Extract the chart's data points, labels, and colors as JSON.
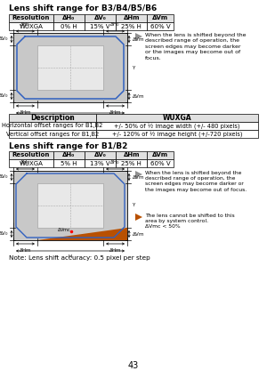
{
  "page_num": "43",
  "title1": "Lens shift range for B3/B4/B5/B6",
  "title2": "Lens shift range for B1/B2",
  "table1_headers": [
    "Resolution",
    "ΔH₀",
    "ΔV₀",
    "ΔHm",
    "ΔVm"
  ],
  "table1_row": [
    "WUXGA",
    "0% H",
    "15% V",
    "25% H",
    "60% V"
  ],
  "table2_headers": [
    "Resolution",
    "ΔH₀",
    "ΔV₀",
    "ΔHm",
    "ΔVm"
  ],
  "table2_row": [
    "WUXGA",
    "5% H",
    "13% V",
    "25% H",
    "60% V"
  ],
  "desc_table_headers": [
    "Description",
    "WUXGA"
  ],
  "desc_table_rows": [
    [
      "Horizontal offset ranges for B1,B2",
      "+/- 50% of ½ image width (+/- 480 pixels)"
    ],
    [
      "Vertical offset ranges for B1,B2",
      "+/- 120% of ½ image height (+/-720 pixels)"
    ]
  ],
  "note_text1": "When the lens is shifted beyond the\ndescribed range of operation, the\nscreen edges may become darker\nor the images may become out of\nfocus.",
  "note_text2": "When the lens is shifted beyond the\ndescribed range of operation, the\nscreen edges may become darker or\nthe images may become out of focus.",
  "note_text3": "The lens cannot be shifted to this\narea by system control.\nΔVmc < 50%",
  "note_text4": "Note: Lens shift accuracy: 0.5 pixel per step",
  "bg_color": "#ffffff",
  "table_header_bg": "#e0e0e0",
  "diagram_bg": "#c8c8c8",
  "inner_rect_bg": "#e8e8e8",
  "blue_color": "#3060c0",
  "orange_color": "#b85000",
  "text_color": "#000000",
  "gray_tri": "#909090"
}
